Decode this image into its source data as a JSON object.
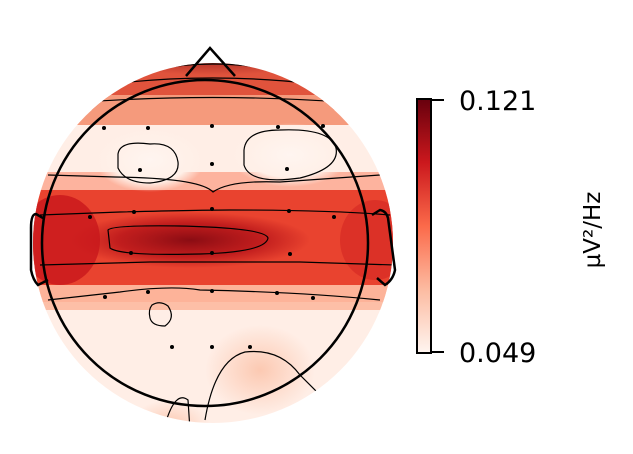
{
  "chart_data": {
    "type": "heatmap",
    "subtype": "scalp-topomap",
    "colormap": "Reds",
    "colormap_stops": [
      "#fff5f0",
      "#fcbba1",
      "#fb6a4a",
      "#cb181d",
      "#67000d"
    ],
    "outline_color": "#000000",
    "colorbar": {
      "label": "µV²/Hz",
      "min": 0.049,
      "max": 0.121,
      "tick_labels": [
        "0.121",
        "0.049"
      ]
    }
  }
}
